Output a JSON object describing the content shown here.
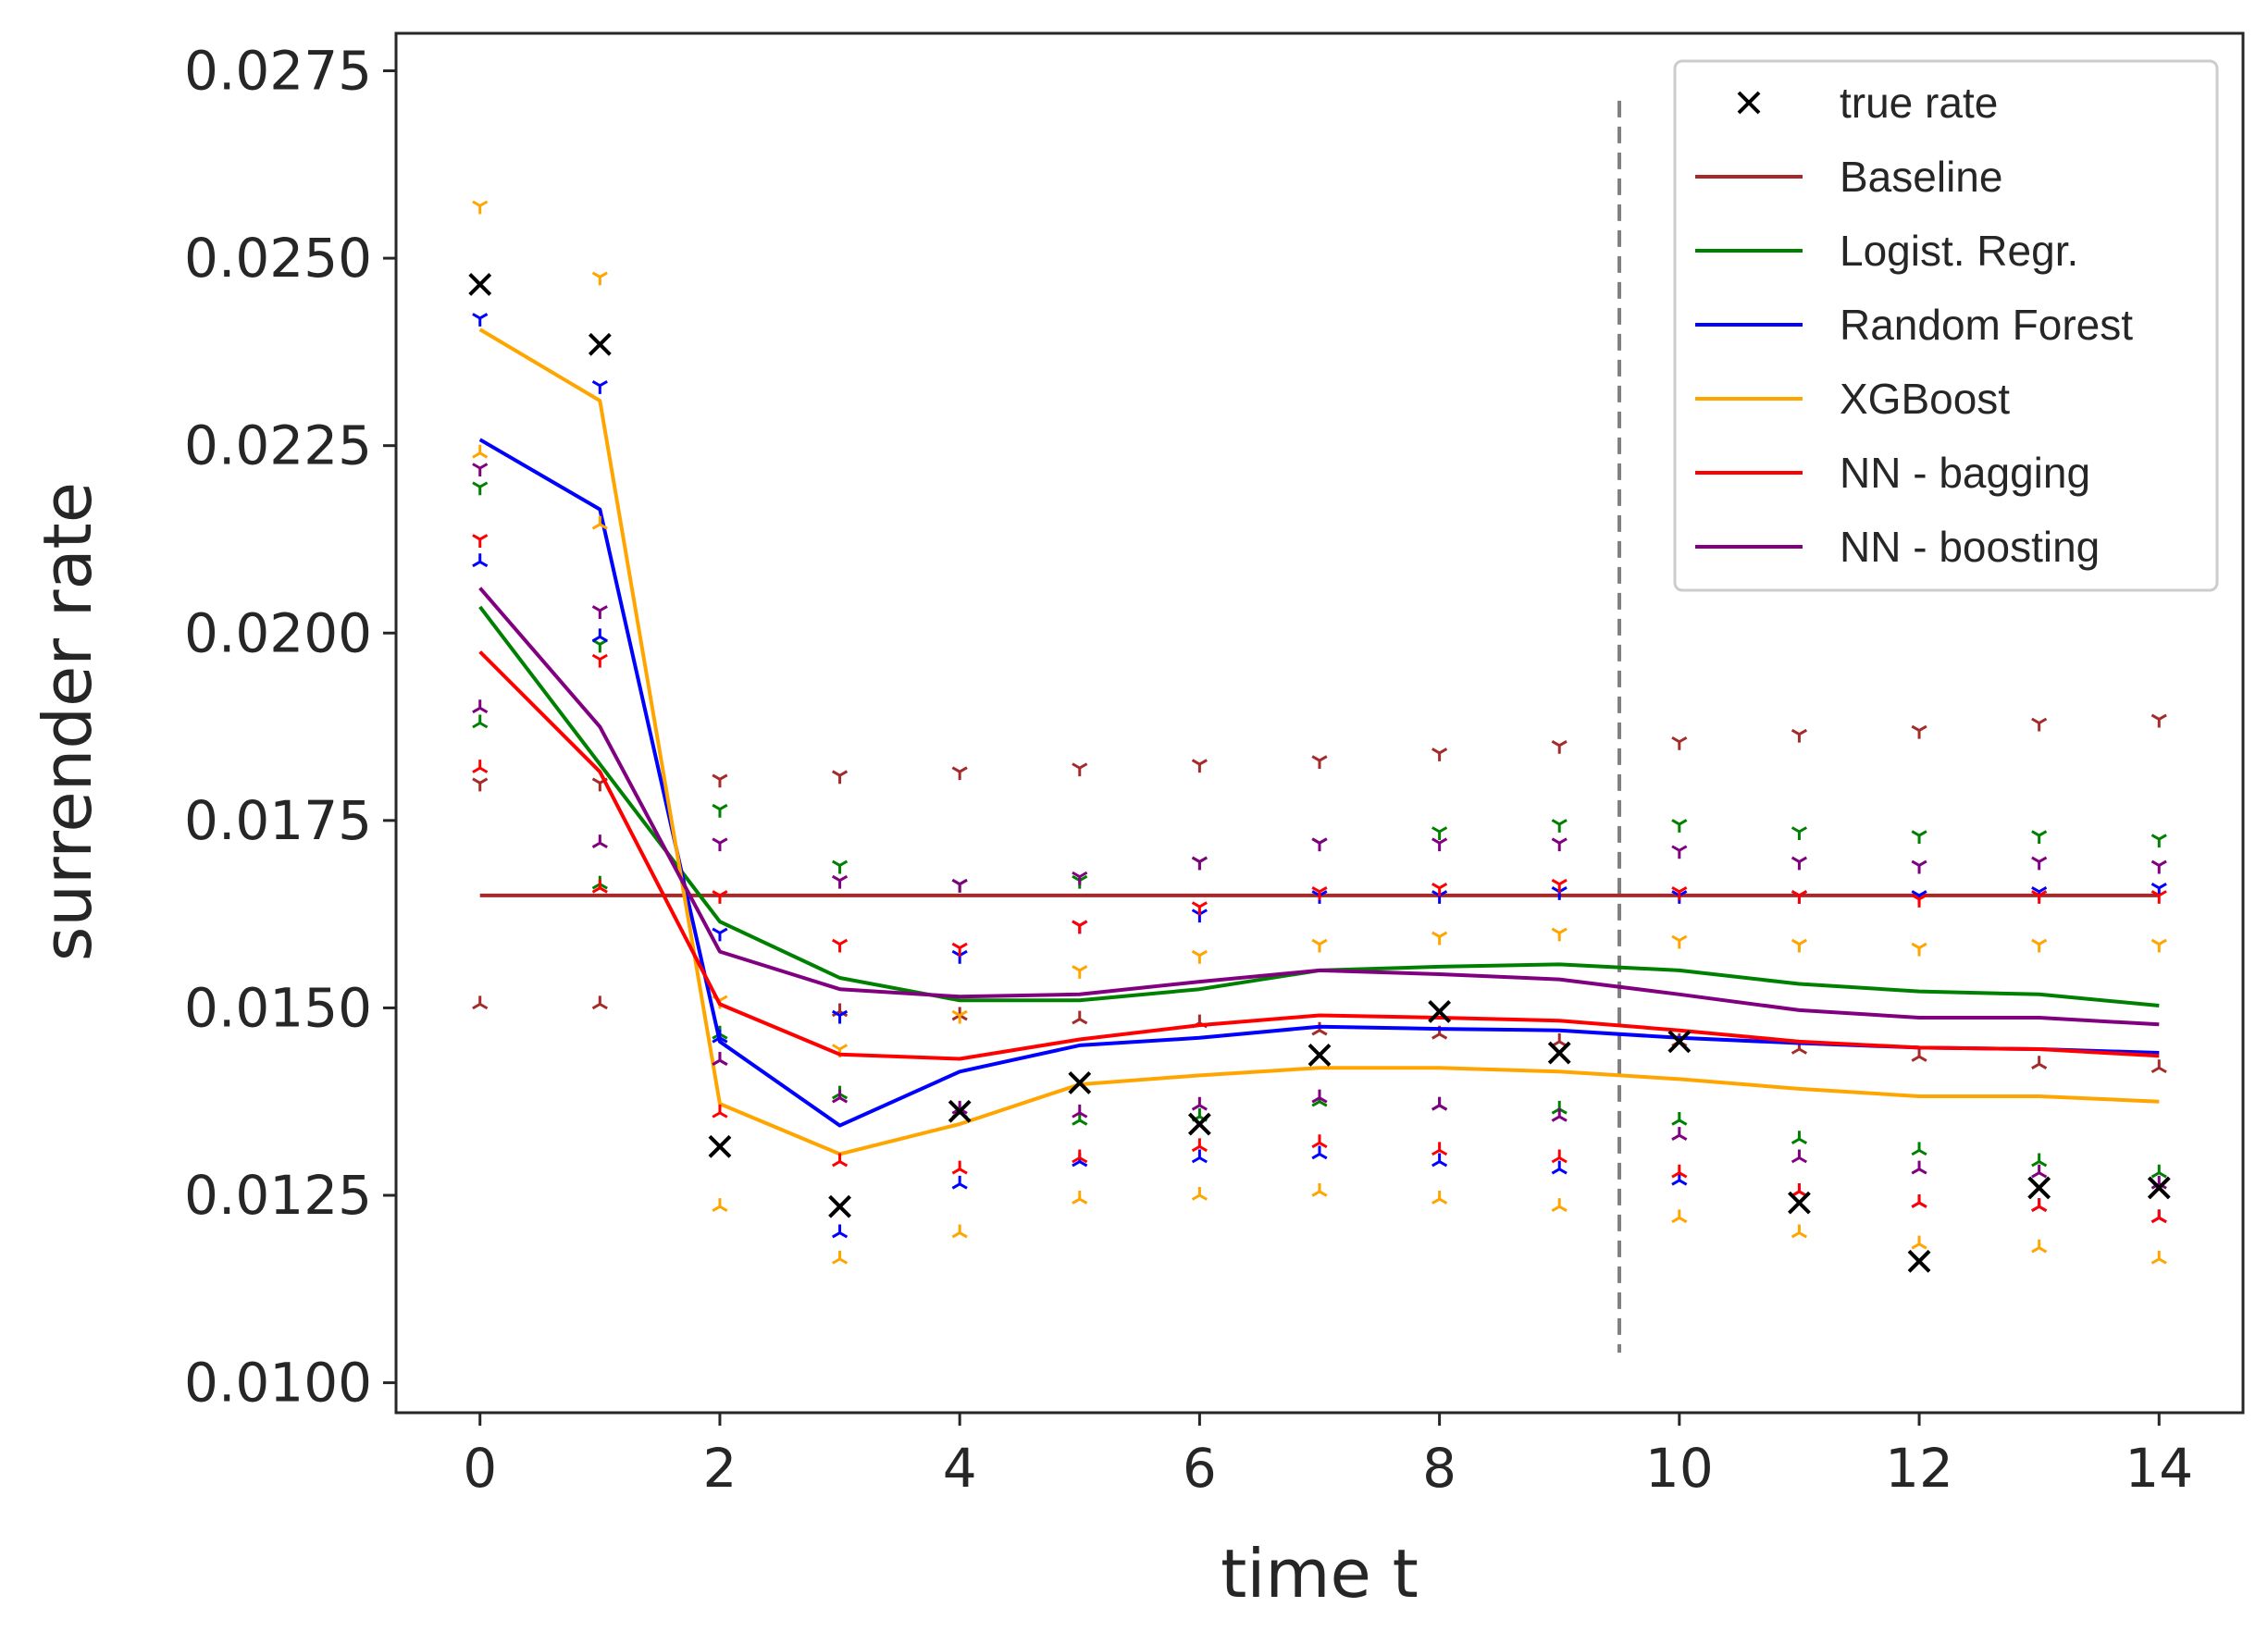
{
  "chart_data": {
    "type": "line",
    "title": "",
    "xlabel": "time t",
    "ylabel": "surrender rate",
    "xlim": [
      -0.7,
      14.7
    ],
    "ylim": [
      0.0096,
      0.028
    ],
    "xticks": [
      0,
      2,
      4,
      6,
      8,
      10,
      12,
      14
    ],
    "yticks": [
      0.01,
      0.0125,
      0.015,
      0.0175,
      0.02,
      0.0225,
      0.025,
      0.0275
    ],
    "ytick_labels": [
      "0.0100",
      "0.0125",
      "0.0150",
      "0.0175",
      "0.0200",
      "0.0225",
      "0.0250",
      "0.0275"
    ],
    "grid": false,
    "legend_position": "top-right",
    "vline": {
      "x": 9.5,
      "y_range": [
        0.0104,
        0.0271
      ],
      "color": "#808080",
      "style": "dashed"
    },
    "x": [
      0,
      1,
      2,
      3,
      4,
      5,
      6,
      7,
      8,
      9,
      10,
      11,
      12,
      13,
      14
    ],
    "true_rate": {
      "name": "true rate",
      "color": "#000000",
      "values": [
        0.02465,
        0.02385,
        0.01315,
        0.01235,
        0.01362,
        0.014,
        0.01345,
        0.01437,
        0.01495,
        0.0144,
        0.01455,
        0.0124,
        0.01162,
        0.0126,
        0.0126
      ]
    },
    "series": [
      {
        "name": "Baseline",
        "color": "#a52a2a",
        "values": [
          0.0165,
          0.0165,
          0.0165,
          0.0165,
          0.0165,
          0.0165,
          0.0165,
          0.0165,
          0.0165,
          0.0165,
          0.0165,
          0.0165,
          0.0165,
          0.0165,
          0.0165
        ],
        "upper": [
          0.018,
          0.018,
          0.01805,
          0.0181,
          0.01815,
          0.0182,
          0.01825,
          0.0183,
          0.0184,
          0.0185,
          0.01855,
          0.01865,
          0.0187,
          0.0188,
          0.01885
        ],
        "lower": [
          0.01505,
          0.01505,
          0.0143,
          0.01495,
          0.0149,
          0.01485,
          0.0148,
          0.0147,
          0.01465,
          0.01455,
          0.01455,
          0.01445,
          0.01435,
          0.01425,
          0.0142
        ]
      },
      {
        "name": "Logist. Regr.",
        "color": "#008000",
        "values": [
          0.02035,
          0.01825,
          0.01615,
          0.0154,
          0.0151,
          0.0151,
          0.01525,
          0.0155,
          0.01555,
          0.01558,
          0.0155,
          0.01532,
          0.01522,
          0.01518,
          0.01503
        ],
        "upper": [
          0.02195,
          0.01985,
          0.01765,
          0.0169,
          0.01665,
          0.0167,
          0.01695,
          0.0172,
          0.01735,
          0.01745,
          0.01745,
          0.01735,
          0.0173,
          0.0173,
          0.01725
        ],
        "lower": [
          0.0188,
          0.01665,
          0.01465,
          0.01385,
          0.0136,
          0.0135,
          0.01355,
          0.01375,
          0.0137,
          0.01365,
          0.0135,
          0.01325,
          0.0131,
          0.01295,
          0.0128
        ]
      },
      {
        "name": "Random Forest",
        "color": "#0000ff",
        "values": [
          0.02258,
          0.02165,
          0.01455,
          0.01343,
          0.01415,
          0.0145,
          0.0146,
          0.01475,
          0.01472,
          0.0147,
          0.0146,
          0.01453,
          0.01447,
          0.01445,
          0.0144
        ],
        "upper": [
          0.0242,
          0.0233,
          0.016,
          0.0149,
          0.0157,
          0.0161,
          0.01625,
          0.0165,
          0.0165,
          0.01655,
          0.0165,
          0.0165,
          0.0165,
          0.01655,
          0.0166
        ],
        "lower": [
          0.02095,
          0.01995,
          0.0146,
          0.012,
          0.01265,
          0.01295,
          0.013,
          0.01305,
          0.01295,
          0.01285,
          0.0127,
          0.01255,
          0.0124,
          0.01235,
          0.0122
        ]
      },
      {
        "name": "XGBoost",
        "color": "#ffa500",
        "values": [
          0.02405,
          0.0231,
          0.01372,
          0.01305,
          0.01345,
          0.01398,
          0.0141,
          0.0142,
          0.0142,
          0.01415,
          0.01405,
          0.01392,
          0.01382,
          0.01382,
          0.01375
        ],
        "upper": [
          0.0257,
          0.02475,
          0.0151,
          0.01445,
          0.0149,
          0.0155,
          0.0157,
          0.01585,
          0.01595,
          0.016,
          0.0159,
          0.01585,
          0.0158,
          0.01585,
          0.01585
        ],
        "lower": [
          0.0224,
          0.02145,
          0.01235,
          0.01165,
          0.012,
          0.01245,
          0.0125,
          0.01255,
          0.01245,
          0.01235,
          0.0122,
          0.012,
          0.01185,
          0.0118,
          0.01165
        ]
      },
      {
        "name": "NN - bagging",
        "color": "#ff0000",
        "values": [
          0.01975,
          0.01815,
          0.01505,
          0.01438,
          0.01432,
          0.01458,
          0.01477,
          0.0149,
          0.01487,
          0.01483,
          0.0147,
          0.01455,
          0.01447,
          0.01445,
          0.01436
        ],
        "upper": [
          0.02125,
          0.01965,
          0.0165,
          0.01585,
          0.0158,
          0.0161,
          0.01635,
          0.01655,
          0.0166,
          0.01665,
          0.01655,
          0.0165,
          0.01645,
          0.0165,
          0.0165
        ],
        "lower": [
          0.0182,
          0.0166,
          0.0136,
          0.01295,
          0.01285,
          0.013,
          0.01315,
          0.0132,
          0.0131,
          0.013,
          0.0128,
          0.01255,
          0.0124,
          0.01235,
          0.0122
        ]
      },
      {
        "name": "NN - boosting",
        "color": "#800080",
        "values": [
          0.0206,
          0.01875,
          0.01575,
          0.01525,
          0.01515,
          0.01518,
          0.01535,
          0.0155,
          0.01545,
          0.01538,
          0.01518,
          0.01497,
          0.01487,
          0.01487,
          0.01478
        ],
        "upper": [
          0.0222,
          0.0203,
          0.0172,
          0.0167,
          0.01665,
          0.01675,
          0.01695,
          0.0172,
          0.0172,
          0.0172,
          0.0171,
          0.01695,
          0.0169,
          0.01695,
          0.0169
        ],
        "lower": [
          0.019,
          0.0172,
          0.0143,
          0.0138,
          0.01365,
          0.0136,
          0.0137,
          0.0138,
          0.0137,
          0.01355,
          0.0133,
          0.013,
          0.01285,
          0.0128,
          0.01265
        ]
      }
    ]
  }
}
